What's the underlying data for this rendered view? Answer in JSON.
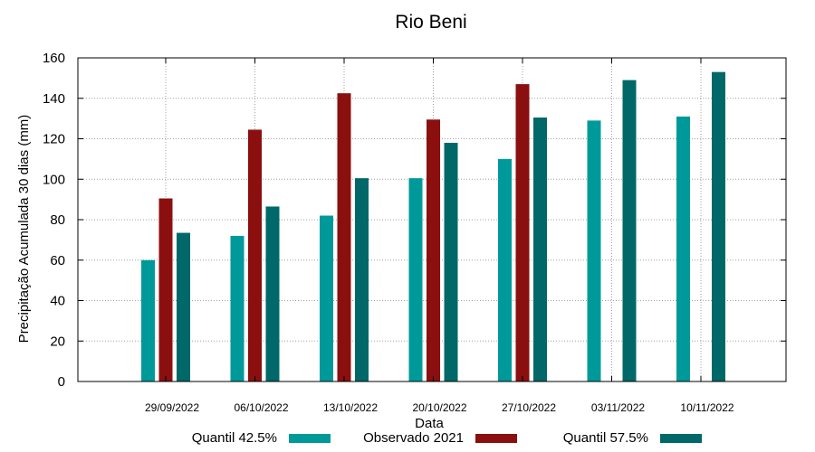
{
  "chart_data": {
    "type": "bar",
    "title": "Rio Beni",
    "xlabel": "Data",
    "ylabel": "Precipitação Acumulada 30 dias (mm)",
    "ylim": [
      0,
      160
    ],
    "yticks": [
      0,
      20,
      40,
      60,
      80,
      100,
      120,
      140,
      160
    ],
    "grid": true,
    "legend_position": "bottom",
    "categories": [
      "29/09/2022",
      "06/10/2022",
      "13/10/2022",
      "20/10/2022",
      "27/10/2022",
      "03/11/2022",
      "10/11/2022"
    ],
    "series": [
      {
        "name": "Quantil 42.5%",
        "color": "#00999a",
        "values": [
          60,
          72,
          82,
          100.5,
          110,
          129,
          131
        ]
      },
      {
        "name": "Observado 2021",
        "color": "#8b0f0f",
        "values": [
          90.5,
          124.5,
          142.5,
          129.5,
          147,
          null,
          null
        ]
      },
      {
        "name": "Quantil 57.5%",
        "color": "#006868",
        "values": [
          73.5,
          86.5,
          100.5,
          118,
          130.5,
          149,
          153
        ]
      }
    ]
  }
}
